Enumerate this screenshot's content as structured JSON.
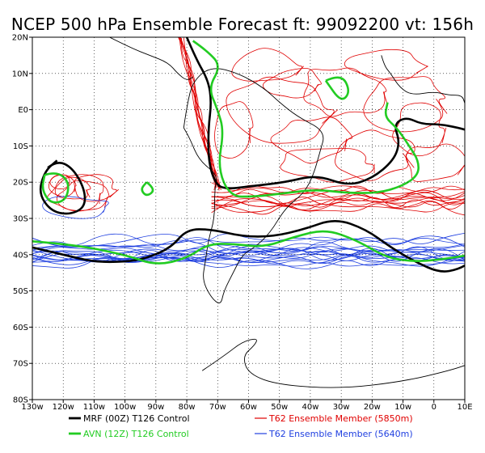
{
  "title": "NCEP 500 hPa Ensemble Forecast   ft: 99092200 vt: 156h",
  "lat_labels": [
    "20N",
    "10N",
    "E0",
    "10S",
    "20S",
    "30S",
    "40S",
    "50S",
    "60S",
    "70S",
    "80S"
  ],
  "lon_labels": [
    "130w",
    "120w",
    "110w",
    "100w",
    "90w",
    "80w",
    "70w",
    "60w",
    "50w",
    "40w",
    "30w",
    "20w",
    "10w",
    "0",
    "10E"
  ],
  "map_extent": {
    "lon": [
      -130,
      10
    ],
    "lat": [
      -80,
      20
    ]
  },
  "legend": [
    {
      "label": "MRF (00Z) T126 Control",
      "color": "#000000",
      "icon": "thick-line"
    },
    {
      "label": "AVN (12Z) T126 Control",
      "color": "#22cc22",
      "icon": "thick-line"
    },
    {
      "label": "T62 Ensemble Member (5850m)",
      "color": "#e00000",
      "icon": "thin-line"
    },
    {
      "label": "T62 Ensemble Member (5640m)",
      "color": "#2040e0",
      "icon": "thin-line"
    }
  ],
  "colors": {
    "mrf": "#000000",
    "avn": "#22cc22",
    "ens_5850": "#e00000",
    "ens_5640": "#2040e0",
    "grid": "#000000",
    "coast": "#000000"
  }
}
